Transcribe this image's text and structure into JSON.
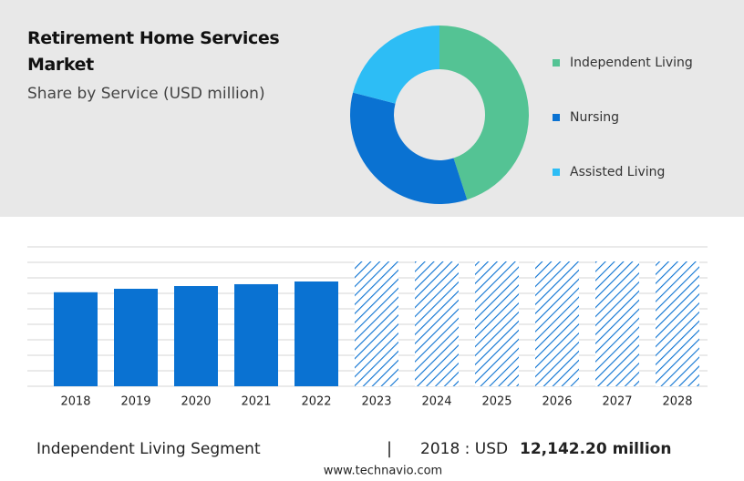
{
  "header": {
    "title": "Retirement Home Services Market",
    "subtitle": "Share by Service (USD million)"
  },
  "chart_data": [
    {
      "type": "pie",
      "donut": true,
      "categories": [
        "Independent Living",
        "Nursing",
        "Assisted Living"
      ],
      "values": [
        45,
        34,
        21
      ],
      "colors": [
        "#54c394",
        "#0a72d2",
        "#2dbdf5"
      ]
    },
    {
      "type": "bar",
      "categories": [
        "2018",
        "2019",
        "2020",
        "2021",
        "2022",
        "2023",
        "2024",
        "2025",
        "2026",
        "2027",
        "2028"
      ],
      "values": [
        12142.2,
        12590,
        12940,
        13180,
        13530,
        null,
        null,
        null,
        null,
        null,
        null
      ],
      "forecast_values": [
        null,
        null,
        null,
        null,
        null,
        16120,
        16120,
        16120,
        16120,
        16120,
        16120
      ],
      "color": "#0a72d2",
      "ylim": [
        0,
        18000
      ],
      "yticks": [
        0,
        2000,
        4000,
        6000,
        8000,
        10000,
        12000,
        14000,
        16000,
        18000
      ],
      "grid": true
    }
  ],
  "footer": {
    "segment": "Independent Living Segment",
    "separator": "|",
    "year_label": "2018 : USD",
    "value": "12,142.20 million",
    "source": "www.technavio.com"
  }
}
